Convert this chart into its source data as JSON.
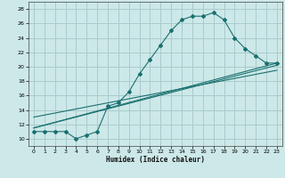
{
  "xlabel": "Humidex (Indice chaleur)",
  "ylabel": "",
  "bg_color": "#cde8e8",
  "grid_color": "#a8cccc",
  "line_color": "#1a7070",
  "xlim": [
    -0.5,
    23.5
  ],
  "ylim": [
    9,
    29
  ],
  "xticks": [
    0,
    1,
    2,
    3,
    4,
    5,
    6,
    7,
    8,
    9,
    10,
    11,
    12,
    13,
    14,
    15,
    16,
    17,
    18,
    19,
    20,
    21,
    22,
    23
  ],
  "yticks": [
    10,
    12,
    14,
    16,
    18,
    20,
    22,
    24,
    26,
    28
  ],
  "main_x": [
    0,
    1,
    2,
    3,
    4,
    5,
    6,
    7,
    8,
    9,
    10,
    11,
    12,
    13,
    14,
    15,
    16,
    17,
    18,
    19,
    20,
    21,
    22,
    23
  ],
  "main_y": [
    11.0,
    11.0,
    11.0,
    11.0,
    10.0,
    10.5,
    11.0,
    14.5,
    15.0,
    16.5,
    19.0,
    21.0,
    23.0,
    25.0,
    26.5,
    27.0,
    27.0,
    27.5,
    26.5,
    24.0,
    22.5,
    21.5,
    20.5,
    20.5
  ],
  "line1_x": [
    0,
    23
  ],
  "line1_y": [
    11.5,
    20.5
  ],
  "line2_x": [
    0,
    23
  ],
  "line2_y": [
    11.5,
    20.2
  ],
  "line3_x": [
    0,
    23
  ],
  "line3_y": [
    13.0,
    19.5
  ]
}
